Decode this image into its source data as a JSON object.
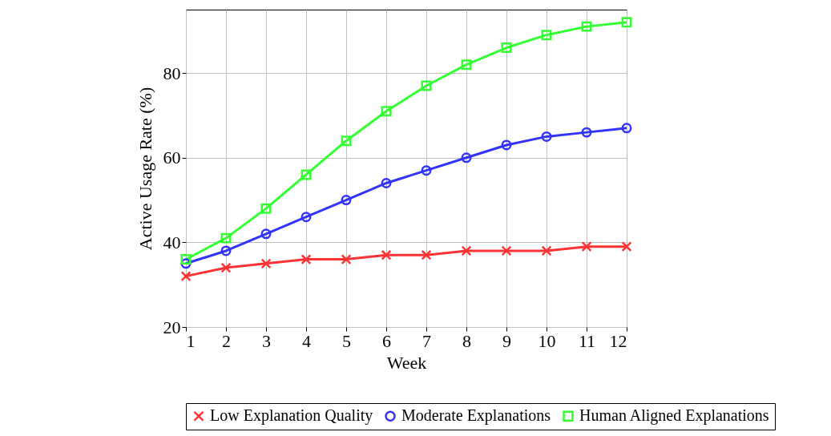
{
  "chart_data": {
    "type": "line",
    "xlabel": "Week",
    "ylabel": "Active Usage Rate (%)",
    "x": [
      1,
      2,
      3,
      4,
      5,
      6,
      7,
      8,
      9,
      10,
      11,
      12
    ],
    "xlim": [
      1,
      12
    ],
    "xticks": [
      1,
      2,
      3,
      4,
      5,
      6,
      7,
      8,
      9,
      10,
      11,
      12
    ],
    "ylim": [
      20,
      95
    ],
    "yticks": [
      20,
      40,
      60,
      80
    ],
    "grid": true,
    "legend": "bottom",
    "line_style": "solid",
    "series": [
      {
        "name": "Low Explanation Quality",
        "color": "#ff3333",
        "marker": "cross",
        "values": [
          32,
          34,
          35,
          36,
          36,
          37,
          37,
          38,
          38,
          38,
          39,
          39
        ]
      },
      {
        "name": "Moderate Explanations",
        "color": "#3333ff",
        "marker": "circle",
        "values": [
          35,
          38,
          42,
          46,
          50,
          54,
          57,
          60,
          63,
          65,
          66,
          67
        ]
      },
      {
        "name": "Human Aligned Explanations",
        "color": "#33ff33",
        "marker": "square",
        "values": [
          36,
          41,
          48,
          56,
          64,
          71,
          77,
          82,
          86,
          89,
          91,
          92
        ]
      }
    ]
  }
}
